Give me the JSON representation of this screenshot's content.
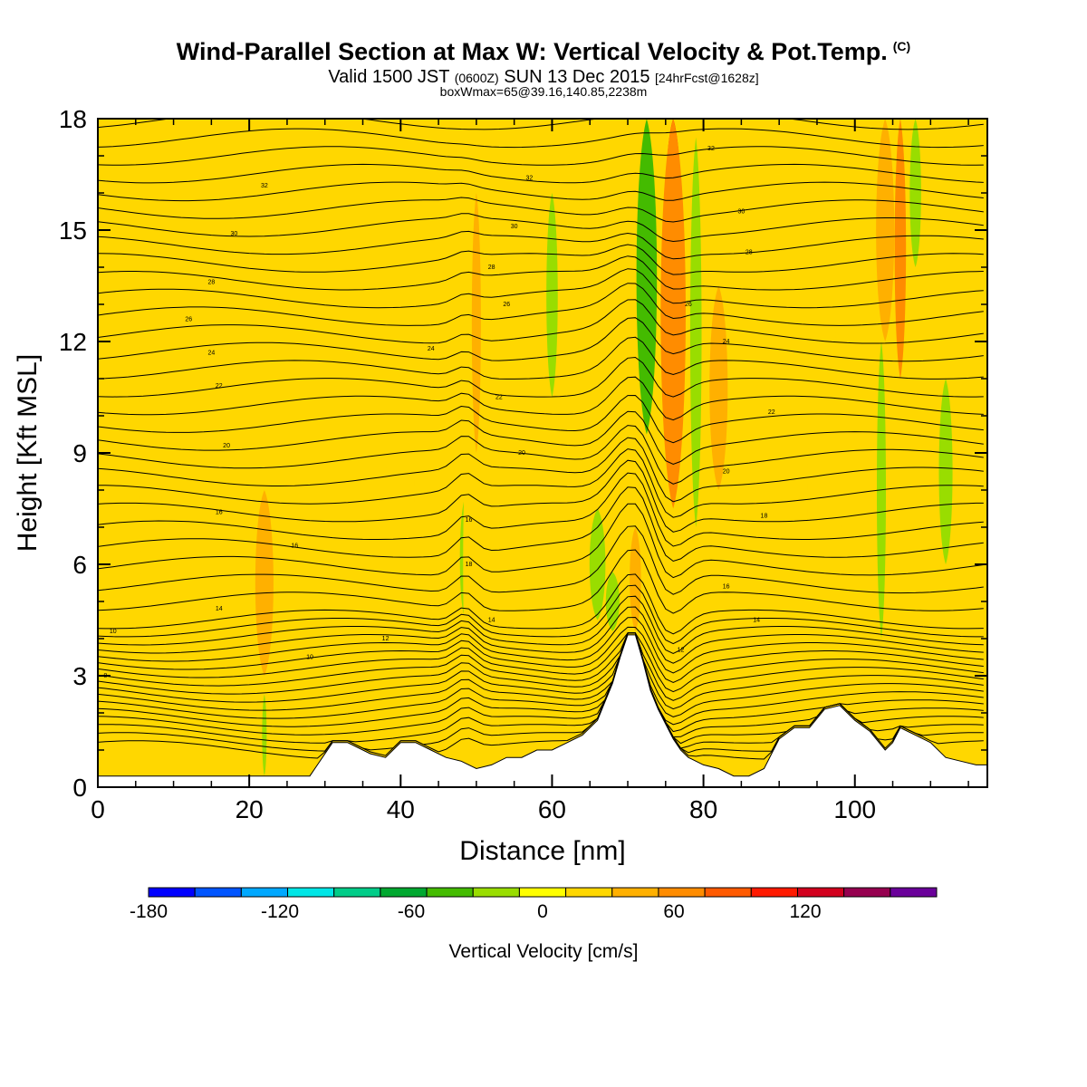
{
  "title": {
    "main": "Wind-Parallel Section at Max W: Vertical Velocity & Pot.Temp.",
    "copyright": "(C)",
    "valid_prefix": "Valid 1500 JST",
    "valid_utc": "(0600Z)",
    "valid_date": "SUN 13 Dec 2015",
    "forecast": "[24hrFcst@1628z]",
    "boxmax": "boxWmax=65@39.16,140.85,2238m"
  },
  "colors": {
    "background": "#ffffff",
    "terrain": "#ffffff",
    "contour_line": "#000000"
  },
  "chart_data": {
    "type": "heatmap",
    "xlabel": "Distance [nm]",
    "ylabel": "Height [Kft MSL]",
    "xlim": [
      0,
      117.5
    ],
    "ylim": [
      0,
      18
    ],
    "xticks": [
      0,
      20,
      40,
      60,
      80,
      100
    ],
    "yticks": [
      0,
      3,
      6,
      9,
      12,
      15,
      18
    ],
    "terrain_kft": {
      "x": [
        0,
        10,
        20,
        28,
        29,
        31,
        33,
        36,
        38,
        40,
        42,
        44,
        46,
        48,
        50,
        52,
        54,
        56,
        58,
        60,
        62,
        64,
        66,
        67,
        68,
        69,
        70,
        71,
        72,
        73,
        74,
        75,
        76,
        77,
        78,
        80,
        82,
        84,
        86,
        88,
        89,
        90,
        92,
        94,
        96,
        98,
        100,
        102,
        104,
        105,
        106,
        108,
        110,
        112,
        114,
        116,
        117.5
      ],
      "y": [
        0.3,
        0.3,
        0.3,
        0.3,
        0.6,
        1.2,
        1.2,
        0.9,
        0.8,
        1.2,
        1.2,
        1.0,
        0.8,
        0.7,
        0.5,
        0.6,
        0.8,
        0.8,
        1.0,
        1.0,
        1.2,
        1.4,
        1.8,
        2.3,
        2.8,
        3.5,
        4.1,
        4.1,
        3.4,
        2.6,
        2.1,
        1.7,
        1.3,
        1.0,
        0.8,
        0.6,
        0.5,
        0.3,
        0.3,
        0.5,
        0.9,
        1.3,
        1.6,
        1.6,
        2.1,
        2.2,
        1.8,
        1.5,
        1.0,
        1.2,
        1.6,
        1.4,
        1.2,
        0.8,
        0.7,
        0.6,
        0.6
      ]
    },
    "vertical_velocity_bands": [
      {
        "x": 7,
        "halfwidth": 2.0,
        "zmin": 1,
        "zmax": 18,
        "w": 12
      },
      {
        "x": 22,
        "halfwidth": 1.6,
        "zmin": 3,
        "zmax": 8,
        "w": 32
      },
      {
        "x": 22,
        "halfwidth": 0.4,
        "zmin": 0.3,
        "zmax": 2.5,
        "w": -30
      },
      {
        "x": 40,
        "halfwidth": 2.5,
        "zmin": 3,
        "zmax": 13,
        "w": 12
      },
      {
        "x": 48.5,
        "halfwidth": 0.9,
        "zmin": 4.5,
        "zmax": 7.8,
        "w": -32
      },
      {
        "x": 49,
        "halfwidth": 1.0,
        "zmin": 2,
        "zmax": 10,
        "w": 18
      },
      {
        "x": 50,
        "halfwidth": 0.8,
        "zmin": 9,
        "zmax": 16,
        "w": 35
      },
      {
        "x": 60,
        "halfwidth": 1.0,
        "zmin": 10.5,
        "zmax": 16,
        "w": -32
      },
      {
        "x": 66,
        "halfwidth": 1.4,
        "zmin": 4.5,
        "zmax": 7.5,
        "w": -35
      },
      {
        "x": 68,
        "halfwidth": 1.2,
        "zmin": 4.2,
        "zmax": 5.8,
        "w": -32
      },
      {
        "x": 71,
        "halfwidth": 1.0,
        "zmin": 4.2,
        "zmax": 7,
        "w": 38
      },
      {
        "x": 72.5,
        "halfwidth": 1.8,
        "zmin": 9.5,
        "zmax": 18,
        "w": -60
      },
      {
        "x": 76,
        "halfwidth": 1.5,
        "zmin": 12,
        "zmax": 18,
        "w": 88
      },
      {
        "x": 76,
        "halfwidth": 2.2,
        "zmin": 7.5,
        "zmax": 18,
        "w": 48
      },
      {
        "x": 79,
        "halfwidth": 1.0,
        "zmin": 7,
        "zmax": 17.5,
        "w": -35
      },
      {
        "x": 82,
        "halfwidth": 1.6,
        "zmin": 8,
        "zmax": 13.5,
        "w": 38
      },
      {
        "x": 96,
        "halfwidth": 3.0,
        "zmin": 1.5,
        "zmax": 14,
        "w": 12
      },
      {
        "x": 103.5,
        "halfwidth": 0.8,
        "zmin": 4,
        "zmax": 12,
        "w": -32
      },
      {
        "x": 104,
        "halfwidth": 1.6,
        "zmin": 12,
        "zmax": 18,
        "w": 28
      },
      {
        "x": 106,
        "halfwidth": 1.0,
        "zmin": 11,
        "zmax": 18,
        "w": 42
      },
      {
        "x": 108,
        "halfwidth": 1.0,
        "zmin": 14,
        "zmax": 18,
        "w": -35
      },
      {
        "x": 112,
        "halfwidth": 1.2,
        "zmin": 6,
        "zmax": 11,
        "w": -30
      }
    ],
    "contour_labels": [
      {
        "text": "8",
        "x": 1.0,
        "y": 3.0
      },
      {
        "text": "10",
        "x": 2.0,
        "y": 4.2
      },
      {
        "text": "14",
        "x": 16,
        "y": 4.8
      },
      {
        "text": "16",
        "x": 16,
        "y": 7.4
      },
      {
        "text": "16",
        "x": 26,
        "y": 6.5
      },
      {
        "text": "20",
        "x": 17,
        "y": 9.2
      },
      {
        "text": "22",
        "x": 16,
        "y": 10.8
      },
      {
        "text": "24",
        "x": 15,
        "y": 11.7
      },
      {
        "text": "26",
        "x": 12,
        "y": 12.6
      },
      {
        "text": "28",
        "x": 15,
        "y": 13.6
      },
      {
        "text": "30",
        "x": 18,
        "y": 14.9
      },
      {
        "text": "32",
        "x": 22,
        "y": 16.2
      },
      {
        "text": "10",
        "x": 28,
        "y": 3.5
      },
      {
        "text": "12",
        "x": 38,
        "y": 4.0
      },
      {
        "text": "14",
        "x": 52,
        "y": 4.5
      },
      {
        "text": "16",
        "x": 49,
        "y": 7.2
      },
      {
        "text": "18",
        "x": 49,
        "y": 6.0
      },
      {
        "text": "20",
        "x": 56,
        "y": 9.0
      },
      {
        "text": "22",
        "x": 53,
        "y": 10.5
      },
      {
        "text": "24",
        "x": 44,
        "y": 11.8
      },
      {
        "text": "26",
        "x": 54,
        "y": 13.0
      },
      {
        "text": "28",
        "x": 52,
        "y": 14.0
      },
      {
        "text": "30",
        "x": 55,
        "y": 15.1
      },
      {
        "text": "32",
        "x": 57,
        "y": 16.4
      },
      {
        "text": "12",
        "x": 77,
        "y": 3.7
      },
      {
        "text": "14",
        "x": 87,
        "y": 4.5
      },
      {
        "text": "16",
        "x": 83,
        "y": 5.4
      },
      {
        "text": "18",
        "x": 88,
        "y": 7.3
      },
      {
        "text": "20",
        "x": 83,
        "y": 8.5
      },
      {
        "text": "22",
        "x": 89,
        "y": 10.1
      },
      {
        "text": "24",
        "x": 83,
        "y": 12.0
      },
      {
        "text": "26",
        "x": 78,
        "y": 13.0
      },
      {
        "text": "28",
        "x": 86,
        "y": 14.4
      },
      {
        "text": "30",
        "x": 85,
        "y": 15.5
      },
      {
        "text": "32",
        "x": 81,
        "y": 17.2
      }
    ]
  },
  "colorbar": {
    "title": "Vertical Velocity [cm/s]",
    "tick_labels": [
      "-180",
      "-120",
      "-60",
      "0",
      "60",
      "120"
    ],
    "tick_values": [
      -180,
      -120,
      -60,
      0,
      60,
      120
    ],
    "bounds": [
      -180,
      -160,
      -140,
      -120,
      -100,
      -80,
      -60,
      -40,
      -20,
      0,
      20,
      40,
      60,
      80,
      100,
      120,
      140,
      160
    ],
    "colors": [
      "#0000ff",
      "#0055ff",
      "#00a8ff",
      "#00e6e6",
      "#00cc88",
      "#00a830",
      "#44bb00",
      "#99dd00",
      "#ffff00",
      "#ffd700",
      "#ffb000",
      "#ff8c00",
      "#ff5a00",
      "#ff1a00",
      "#d2001e",
      "#960050",
      "#6a009a"
    ]
  }
}
